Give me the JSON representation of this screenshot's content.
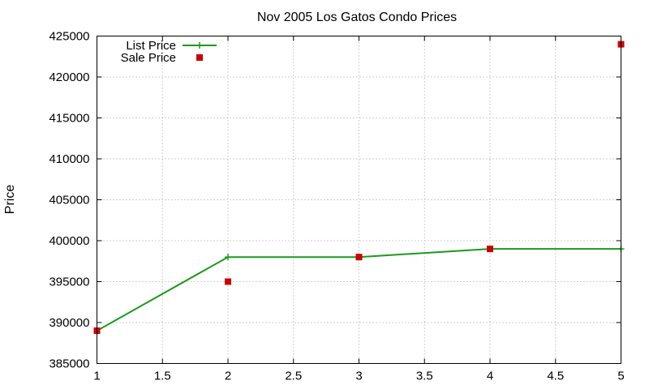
{
  "chart_data": {
    "type": "line",
    "title": "Nov 2005 Los Gatos Condo Prices",
    "xlabel": "",
    "ylabel": "Price",
    "xlim": [
      1,
      5
    ],
    "ylim": [
      385000,
      425000
    ],
    "x_ticks": [
      "1",
      "1.5",
      "2",
      "2.5",
      "3",
      "3.5",
      "4",
      "4.5",
      "5"
    ],
    "y_ticks": [
      "385000",
      "390000",
      "395000",
      "400000",
      "405000",
      "410000",
      "415000",
      "420000",
      "425000"
    ],
    "grid": true,
    "legend_position": "top-left",
    "series": [
      {
        "name": "List Price",
        "style": "line-with-plus-markers",
        "color": "#1a9a1a",
        "x": [
          1,
          2,
          3,
          4,
          5
        ],
        "y": [
          389000,
          398000,
          398000,
          399000,
          399000
        ]
      },
      {
        "name": "Sale Price",
        "style": "square-markers",
        "color": "#cc0000",
        "x": [
          1,
          2,
          3,
          4,
          5
        ],
        "y": [
          389000,
          395000,
          398000,
          399000,
          424000
        ]
      }
    ]
  }
}
